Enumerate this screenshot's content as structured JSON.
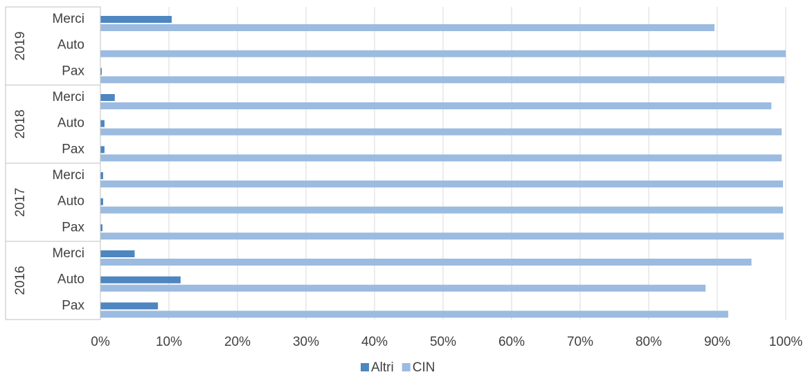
{
  "chart_data": {
    "type": "bar",
    "orientation": "horizontal",
    "stacked": false,
    "groups": [
      {
        "label": "2019",
        "categories": [
          "Merci",
          "Auto",
          "Pax"
        ]
      },
      {
        "label": "2018",
        "categories": [
          "Merci",
          "Auto",
          "Pax"
        ]
      },
      {
        "label": "2017",
        "categories": [
          "Merci",
          "Auto",
          "Pax"
        ]
      },
      {
        "label": "2016",
        "categories": [
          "Merci",
          "Auto",
          "Pax"
        ]
      }
    ],
    "series": [
      {
        "name": "Altri",
        "color": "#4e86c0",
        "values": [
          10.4,
          0.0,
          0.2,
          2.1,
          0.6,
          0.6,
          0.4,
          0.4,
          0.3,
          5.0,
          11.7,
          8.4
        ]
      },
      {
        "name": "CIN",
        "color": "#9bbbe0",
        "values": [
          89.6,
          100.0,
          99.8,
          97.9,
          99.4,
          99.4,
          99.6,
          99.6,
          99.7,
          95.0,
          88.3,
          91.6
        ]
      }
    ],
    "xlim": [
      0,
      100
    ],
    "xticks": [
      "0%",
      "10%",
      "20%",
      "30%",
      "40%",
      "50%",
      "60%",
      "70%",
      "80%",
      "90%",
      "100%"
    ],
    "grid": true,
    "legend": "bottom",
    "title": "",
    "xlabel": "",
    "ylabel": ""
  }
}
